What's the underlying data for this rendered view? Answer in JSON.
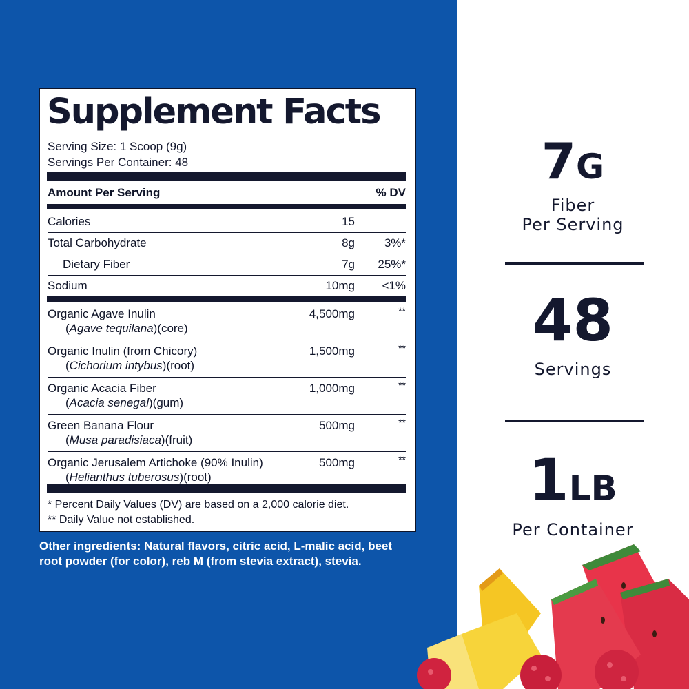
{
  "facts": {
    "title": "Supplement Facts",
    "serving_size": "Serving Size: 1 Scoop (9g)",
    "servings_per_container": "Servings Per Container: 48",
    "header_amount": "Amount Per Serving",
    "header_dv": "% DV",
    "nutrients": [
      {
        "label": "Calories",
        "amount": "15",
        "dv": ""
      },
      {
        "label": "Total Carbohydrate",
        "amount": "8g",
        "dv": "3%*"
      },
      {
        "label": "Dietary Fiber",
        "amount": "7g",
        "dv": "25%*"
      },
      {
        "label": "Sodium",
        "amount": "10mg",
        "dv": "<1%"
      }
    ],
    "ingredients": [
      {
        "name": "Organic Agave Inulin",
        "sci": "Agave tequilana",
        "part": "(core)",
        "amount": "4,500mg",
        "dv": "**"
      },
      {
        "name": "Organic Inulin (from Chicory)",
        "sci": "Cichorium intybus",
        "part": "(root)",
        "amount": "1,500mg",
        "dv": "**"
      },
      {
        "name": "Organic Acacia Fiber",
        "sci": "Acacia senegal",
        "part": "(gum)",
        "amount": "1,000mg",
        "dv": "**"
      },
      {
        "name": "Green Banana Flour",
        "sci": "Musa paradisiaca",
        "part": "(fruit)",
        "amount": "500mg",
        "dv": "**"
      },
      {
        "name": "Organic Jerusalem Artichoke (90% Inulin)",
        "sci": "Helianthus tuberosus",
        "part": "(root)",
        "amount": "500mg",
        "dv": "**"
      }
    ],
    "footnote1": "* Percent Daily Values (DV) are based on a 2,000 calorie diet.",
    "footnote2": "** Daily Value not established."
  },
  "other_ingredients": "Other ingredients: Natural flavors, citric acid, L-malic acid, beet root powder (for color), reb M (from stevia extract), stevia.",
  "stats": [
    {
      "value": "7",
      "unit": "G",
      "label_line1": "Fiber",
      "label_line2": "Per Serving"
    },
    {
      "value": "48",
      "unit": "",
      "label_line1": "Servings",
      "label_line2": ""
    },
    {
      "value": "1",
      "unit": "LB",
      "label_line1": "Per Container",
      "label_line2": ""
    }
  ],
  "colors": {
    "panel_blue": "#0d55aa",
    "ink": "#14182e",
    "white": "#ffffff"
  }
}
